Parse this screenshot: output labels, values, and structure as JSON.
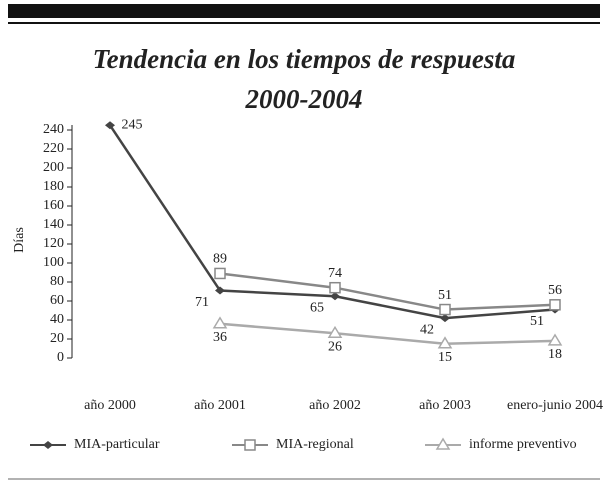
{
  "chart_data": {
    "type": "line",
    "title": "Tendencia en los tiempos de respuesta",
    "subtitle": "2000-2004",
    "y_label": "Días",
    "categories": [
      "año 2000",
      "año 2001",
      "año 2002",
      "año 2003",
      "enero-junio 2004"
    ],
    "series": [
      {
        "name": "MIA-particular",
        "color": "#444444",
        "marker": "diamond",
        "values": [
          245,
          71,
          65,
          42,
          51
        ]
      },
      {
        "name": "MIA-regional",
        "color": "#888888",
        "marker": "square",
        "values": [
          null,
          89,
          74,
          51,
          56
        ]
      },
      {
        "name": "informe preventivo",
        "color": "#aaaaaa",
        "marker": "triangle",
        "values": [
          null,
          36,
          26,
          15,
          18
        ]
      }
    ],
    "ylim": [
      0,
      250
    ],
    "yticks": [
      0,
      20,
      40,
      60,
      80,
      100,
      120,
      140,
      160,
      180,
      200,
      220,
      240
    ]
  }
}
